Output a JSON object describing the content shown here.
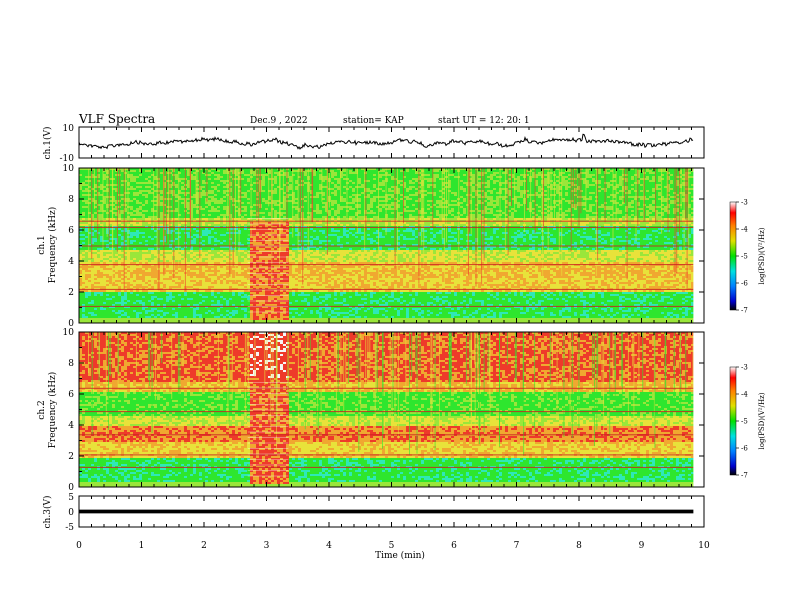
{
  "header": {
    "title": "VLF Spectra",
    "date": "Dec.9 , 2022",
    "station": "station= KAP",
    "start": "start UT = 12: 20: 1"
  },
  "chart_data": [
    {
      "type": "line",
      "name": "ch1-waveform-panel",
      "ylabel": "ch.1(V)",
      "ylim": [
        -10,
        10
      ],
      "yticks": [
        "10",
        "-10"
      ],
      "xlim": [
        0,
        10
      ],
      "x_extent_min": 9.83
    },
    {
      "type": "heatmap",
      "name": "ch1-spectrogram",
      "ylabel": "ch.1\nFrequency (kHz)",
      "ylim": [
        0,
        10
      ],
      "yticks": [
        "0",
        "2",
        "4",
        "6",
        "8",
        "10"
      ],
      "xlim": [
        0,
        10
      ],
      "x_extent_min": 9.83,
      "burst_interval_min": [
        2.7,
        3.35
      ],
      "colorbar": {
        "label": "log(PSD)(V²/Hz)",
        "range": [
          -7,
          -3
        ],
        "ticks": [
          "-3",
          "-4",
          "-5",
          "-6",
          "-7"
        ]
      }
    },
    {
      "type": "heatmap",
      "name": "ch2-spectrogram",
      "ylabel": "ch.2\nFrequency (kHz)",
      "ylim": [
        0,
        10
      ],
      "yticks": [
        "0",
        "2",
        "4",
        "6",
        "8",
        "10"
      ],
      "xlim": [
        0,
        10
      ],
      "x_extent_min": 9.83,
      "burst_interval_min": [
        2.7,
        3.35
      ],
      "colorbar": {
        "label": "log(PSD)(V²/Hz)",
        "range": [
          -7,
          -3
        ],
        "ticks": [
          "-3",
          "-4",
          "-5",
          "-6",
          "-7"
        ]
      }
    },
    {
      "type": "line",
      "name": "ch3-waveform-panel",
      "ylabel": "ch.3(V)",
      "ylim": [
        -5,
        5
      ],
      "yticks": [
        "5",
        "0",
        "-5"
      ],
      "xlim": [
        0,
        10
      ],
      "x_extent_min": 9.83,
      "xlabel": "Time (min)",
      "xticks": [
        "0",
        "1",
        "2",
        "3",
        "4",
        "5",
        "6",
        "7",
        "8",
        "9",
        "10"
      ]
    }
  ]
}
